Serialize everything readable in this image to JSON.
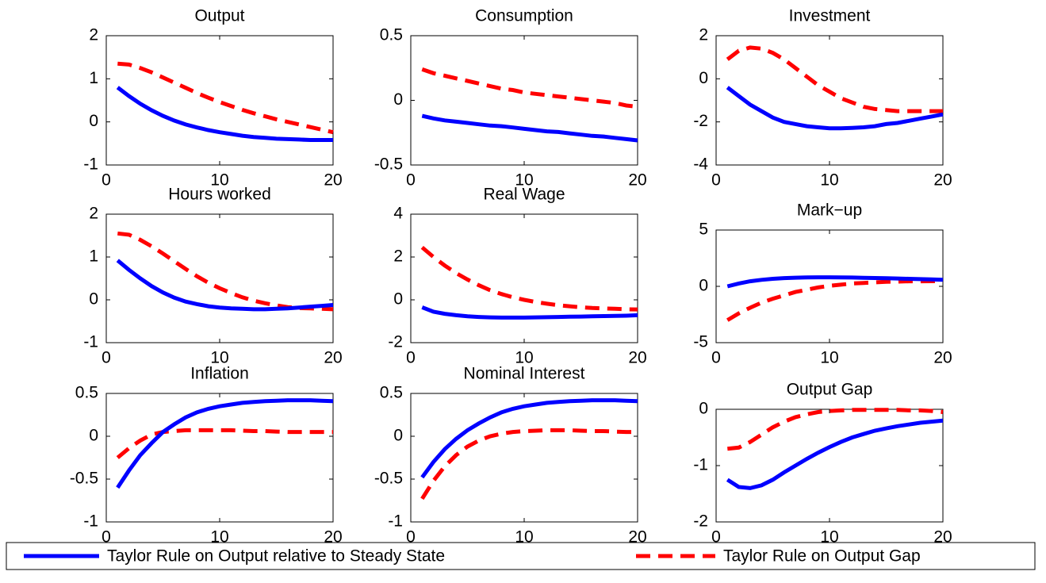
{
  "chart_data": [
    {
      "type": "line",
      "title": "Output",
      "x": [
        1,
        2,
        3,
        4,
        5,
        6,
        7,
        8,
        9,
        10,
        11,
        12,
        13,
        14,
        15,
        16,
        17,
        18,
        19,
        20
      ],
      "xlim": [
        0,
        20
      ],
      "xticks": [
        0,
        10,
        20
      ],
      "ylim": [
        -1,
        2
      ],
      "yticks": [
        -1,
        0,
        1,
        2
      ],
      "series": [
        {
          "name": "Taylor Rule on Output relative to Steady State",
          "color": "#0000ff",
          "values": [
            0.8,
            0.6,
            0.42,
            0.27,
            0.14,
            0.03,
            -0.06,
            -0.13,
            -0.19,
            -0.24,
            -0.28,
            -0.32,
            -0.35,
            -0.37,
            -0.39,
            -0.4,
            -0.41,
            -0.42,
            -0.42,
            -0.42
          ]
        },
        {
          "name": "Taylor Rule on Output Gap",
          "color": "#ff0000",
          "values": [
            1.35,
            1.33,
            1.25,
            1.15,
            1.03,
            0.91,
            0.79,
            0.67,
            0.56,
            0.46,
            0.37,
            0.28,
            0.2,
            0.13,
            0.06,
            0.0,
            -0.06,
            -0.12,
            -0.18,
            -0.24
          ]
        }
      ]
    },
    {
      "type": "line",
      "title": "Consumption",
      "x": [
        1,
        2,
        3,
        4,
        5,
        6,
        7,
        8,
        9,
        10,
        11,
        12,
        13,
        14,
        15,
        16,
        17,
        18,
        19,
        20
      ],
      "xlim": [
        0,
        20
      ],
      "xticks": [
        0,
        10,
        20
      ],
      "ylim": [
        -0.5,
        0.5
      ],
      "yticks": [
        -0.5,
        0,
        0.5
      ],
      "series": [
        {
          "name": "Taylor Rule on Output relative to Steady State",
          "color": "#0000ff",
          "values": [
            -0.12,
            -0.14,
            -0.155,
            -0.165,
            -0.175,
            -0.185,
            -0.195,
            -0.2,
            -0.21,
            -0.22,
            -0.23,
            -0.24,
            -0.245,
            -0.255,
            -0.265,
            -0.275,
            -0.28,
            -0.29,
            -0.3,
            -0.31
          ]
        },
        {
          "name": "Taylor Rule on Output Gap",
          "color": "#ff0000",
          "values": [
            0.24,
            0.21,
            0.19,
            0.17,
            0.15,
            0.13,
            0.11,
            0.09,
            0.08,
            0.06,
            0.05,
            0.04,
            0.03,
            0.02,
            0.01,
            0.0,
            -0.01,
            -0.02,
            -0.04,
            -0.05
          ]
        }
      ]
    },
    {
      "type": "line",
      "title": "Investment",
      "x": [
        1,
        2,
        3,
        4,
        5,
        6,
        7,
        8,
        9,
        10,
        11,
        12,
        13,
        14,
        15,
        16,
        17,
        18,
        19,
        20
      ],
      "xlim": [
        0,
        20
      ],
      "xticks": [
        0,
        10,
        20
      ],
      "ylim": [
        -4,
        2
      ],
      "yticks": [
        -4,
        -2,
        0,
        2
      ],
      "series": [
        {
          "name": "Taylor Rule on Output relative to Steady State",
          "color": "#0000ff",
          "values": [
            -0.4,
            -0.8,
            -1.2,
            -1.5,
            -1.8,
            -2.0,
            -2.1,
            -2.2,
            -2.25,
            -2.3,
            -2.3,
            -2.28,
            -2.25,
            -2.2,
            -2.1,
            -2.05,
            -1.95,
            -1.85,
            -1.75,
            -1.65
          ]
        },
        {
          "name": "Taylor Rule on Output Gap",
          "color": "#ff0000",
          "values": [
            0.9,
            1.3,
            1.45,
            1.4,
            1.2,
            0.9,
            0.5,
            0.1,
            -0.3,
            -0.6,
            -0.9,
            -1.1,
            -1.3,
            -1.4,
            -1.45,
            -1.5,
            -1.5,
            -1.5,
            -1.5,
            -1.5
          ]
        }
      ]
    },
    {
      "type": "line",
      "title": "Hours worked",
      "x": [
        1,
        2,
        3,
        4,
        5,
        6,
        7,
        8,
        9,
        10,
        11,
        12,
        13,
        14,
        15,
        16,
        17,
        18,
        19,
        20
      ],
      "xlim": [
        0,
        20
      ],
      "xticks": [
        0,
        10,
        20
      ],
      "ylim": [
        -1,
        2
      ],
      "yticks": [
        -1,
        0,
        1,
        2
      ],
      "series": [
        {
          "name": "Taylor Rule on Output relative to Steady State",
          "color": "#0000ff",
          "values": [
            0.92,
            0.7,
            0.5,
            0.32,
            0.17,
            0.05,
            -0.04,
            -0.1,
            -0.15,
            -0.18,
            -0.2,
            -0.21,
            -0.22,
            -0.22,
            -0.21,
            -0.2,
            -0.18,
            -0.16,
            -0.14,
            -0.12
          ]
        },
        {
          "name": "Taylor Rule on Output Gap",
          "color": "#ff0000",
          "values": [
            1.55,
            1.52,
            1.4,
            1.25,
            1.08,
            0.9,
            0.72,
            0.55,
            0.4,
            0.27,
            0.16,
            0.06,
            -0.02,
            -0.08,
            -0.13,
            -0.17,
            -0.19,
            -0.2,
            -0.21,
            -0.22
          ]
        }
      ]
    },
    {
      "type": "line",
      "title": "Real Wage",
      "x": [
        1,
        2,
        3,
        4,
        5,
        6,
        7,
        8,
        9,
        10,
        11,
        12,
        13,
        14,
        15,
        16,
        17,
        18,
        19,
        20
      ],
      "xlim": [
        0,
        20
      ],
      "xticks": [
        0,
        10,
        20
      ],
      "ylim": [
        -2,
        4
      ],
      "yticks": [
        -2,
        0,
        2,
        4
      ],
      "series": [
        {
          "name": "Taylor Rule on Output relative to Steady State",
          "color": "#0000ff",
          "values": [
            -0.35,
            -0.55,
            -0.65,
            -0.72,
            -0.77,
            -0.8,
            -0.82,
            -0.83,
            -0.83,
            -0.83,
            -0.82,
            -0.81,
            -0.8,
            -0.79,
            -0.78,
            -0.77,
            -0.76,
            -0.75,
            -0.74,
            -0.72
          ]
        },
        {
          "name": "Taylor Rule on Output Gap",
          "color": "#ff0000",
          "values": [
            2.45,
            2.0,
            1.6,
            1.25,
            0.95,
            0.68,
            0.45,
            0.27,
            0.12,
            0.0,
            -0.1,
            -0.18,
            -0.25,
            -0.3,
            -0.35,
            -0.38,
            -0.4,
            -0.42,
            -0.44,
            -0.45
          ]
        }
      ]
    },
    {
      "type": "line",
      "title": "Mark−up",
      "x": [
        1,
        2,
        3,
        4,
        5,
        6,
        7,
        8,
        9,
        10,
        11,
        12,
        13,
        14,
        15,
        16,
        17,
        18,
        19,
        20
      ],
      "xlim": [
        0,
        20
      ],
      "xticks": [
        0,
        10,
        20
      ],
      "ylim": [
        -5,
        5
      ],
      "yticks": [
        -5,
        0,
        5
      ],
      "series": [
        {
          "name": "Taylor Rule on Output relative to Steady State",
          "color": "#0000ff",
          "values": [
            0.0,
            0.25,
            0.45,
            0.58,
            0.67,
            0.73,
            0.77,
            0.79,
            0.8,
            0.8,
            0.79,
            0.78,
            0.76,
            0.74,
            0.72,
            0.7,
            0.67,
            0.64,
            0.61,
            0.58
          ]
        },
        {
          "name": "Taylor Rule on Output Gap",
          "color": "#ff0000",
          "values": [
            -3.0,
            -2.4,
            -1.9,
            -1.45,
            -1.1,
            -0.8,
            -0.5,
            -0.3,
            -0.1,
            0.05,
            0.15,
            0.25,
            0.3,
            0.35,
            0.4,
            0.42,
            0.45,
            0.45,
            0.46,
            0.46
          ]
        }
      ]
    },
    {
      "type": "line",
      "title": "Inflation",
      "x": [
        1,
        2,
        3,
        4,
        5,
        6,
        7,
        8,
        9,
        10,
        11,
        12,
        13,
        14,
        15,
        16,
        17,
        18,
        19,
        20
      ],
      "xlim": [
        0,
        20
      ],
      "xticks": [
        0,
        10,
        20
      ],
      "ylim": [
        -1,
        0.5
      ],
      "yticks": [
        -1,
        -0.5,
        0,
        0.5
      ],
      "series": [
        {
          "name": "Taylor Rule on Output relative to Steady State",
          "color": "#0000ff",
          "values": [
            -0.6,
            -0.4,
            -0.22,
            -0.08,
            0.05,
            0.14,
            0.22,
            0.28,
            0.32,
            0.35,
            0.37,
            0.39,
            0.4,
            0.41,
            0.415,
            0.42,
            0.42,
            0.42,
            0.415,
            0.41
          ]
        },
        {
          "name": "Taylor Rule on Output Gap",
          "color": "#ff0000",
          "values": [
            -0.25,
            -0.14,
            -0.05,
            0.02,
            0.05,
            0.06,
            0.07,
            0.07,
            0.07,
            0.07,
            0.07,
            0.065,
            0.06,
            0.06,
            0.055,
            0.05,
            0.05,
            0.05,
            0.05,
            0.05
          ]
        }
      ]
    },
    {
      "type": "line",
      "title": "Nominal Interest",
      "x": [
        1,
        2,
        3,
        4,
        5,
        6,
        7,
        8,
        9,
        10,
        11,
        12,
        13,
        14,
        15,
        16,
        17,
        18,
        19,
        20
      ],
      "xlim": [
        0,
        20
      ],
      "xticks": [
        0,
        10,
        20
      ],
      "ylim": [
        -1,
        0.5
      ],
      "yticks": [
        -1,
        -0.5,
        0,
        0.5
      ],
      "series": [
        {
          "name": "Taylor Rule on Output relative to Steady State",
          "color": "#0000ff",
          "values": [
            -0.48,
            -0.3,
            -0.15,
            -0.03,
            0.07,
            0.15,
            0.22,
            0.28,
            0.32,
            0.35,
            0.37,
            0.39,
            0.4,
            0.41,
            0.415,
            0.42,
            0.42,
            0.42,
            0.415,
            0.41
          ]
        },
        {
          "name": "Taylor Rule on Output Gap",
          "color": "#ff0000",
          "values": [
            -0.73,
            -0.52,
            -0.35,
            -0.22,
            -0.12,
            -0.05,
            0.0,
            0.03,
            0.05,
            0.06,
            0.065,
            0.07,
            0.07,
            0.07,
            0.065,
            0.06,
            0.06,
            0.055,
            0.05,
            0.05
          ]
        }
      ]
    },
    {
      "type": "line",
      "title": "Output Gap",
      "x": [
        1,
        2,
        3,
        4,
        5,
        6,
        7,
        8,
        9,
        10,
        11,
        12,
        13,
        14,
        15,
        16,
        17,
        18,
        19,
        20
      ],
      "xlim": [
        0,
        20
      ],
      "xticks": [
        0,
        10,
        20
      ],
      "ylim": [
        -2,
        0
      ],
      "yticks": [
        -2,
        -1,
        0
      ],
      "series": [
        {
          "name": "Taylor Rule on Output relative to Steady State",
          "color": "#0000ff",
          "values": [
            -1.25,
            -1.38,
            -1.4,
            -1.35,
            -1.25,
            -1.12,
            -1.0,
            -0.88,
            -0.77,
            -0.67,
            -0.58,
            -0.5,
            -0.44,
            -0.38,
            -0.34,
            -0.3,
            -0.27,
            -0.24,
            -0.22,
            -0.2
          ]
        },
        {
          "name": "Taylor Rule on Output Gap",
          "color": "#ff0000",
          "values": [
            -0.7,
            -0.68,
            -0.58,
            -0.45,
            -0.32,
            -0.22,
            -0.14,
            -0.09,
            -0.05,
            -0.03,
            -0.02,
            -0.01,
            -0.01,
            -0.01,
            -0.01,
            -0.01,
            -0.02,
            -0.02,
            -0.03,
            -0.05
          ]
        }
      ]
    }
  ]
}
